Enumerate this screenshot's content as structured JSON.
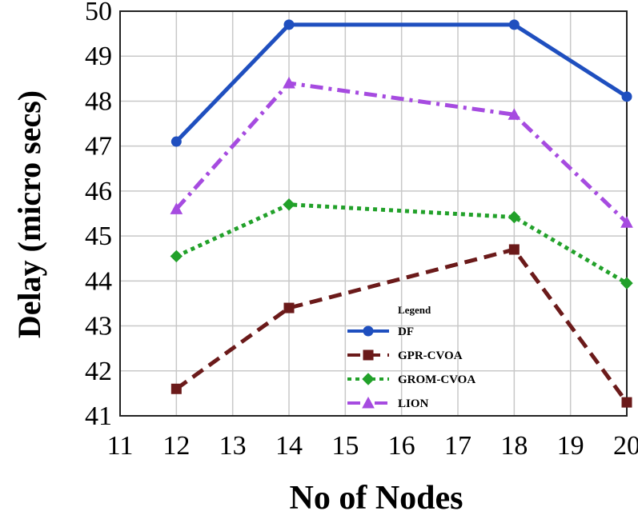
{
  "chart_data": {
    "type": "line",
    "title": "",
    "xlabel": "No of Nodes",
    "ylabel": "Delay (micro secs)",
    "x": [
      12,
      14,
      18,
      20
    ],
    "xlim": [
      11,
      20
    ],
    "ylim": [
      41,
      50
    ],
    "xticks": [
      "11",
      "12",
      "13",
      "14",
      "15",
      "16",
      "17",
      "18",
      "19",
      "20"
    ],
    "yticks": [
      "41",
      "42",
      "43",
      "44",
      "45",
      "46",
      "47",
      "48",
      "49",
      "50"
    ],
    "grid": true,
    "legend": {
      "title": "Legend",
      "placement": "bottom-center"
    },
    "series": [
      {
        "name": "DF",
        "values": [
          47.1,
          49.7,
          49.7,
          48.1
        ],
        "color": "#1f4fbf",
        "marker": "circle",
        "dash": "solid"
      },
      {
        "name": "GPR-CVOA",
        "values": [
          41.6,
          43.4,
          44.7,
          41.3
        ],
        "color": "#6b1a1a",
        "marker": "square",
        "dash": "dashed"
      },
      {
        "name": "GROM-CVOA",
        "values": [
          44.55,
          45.7,
          45.42,
          43.95
        ],
        "color": "#22a12a",
        "marker": "diamond",
        "dash": "dotted"
      },
      {
        "name": "LION",
        "values": [
          45.6,
          48.4,
          47.7,
          45.3
        ],
        "color": "#a64be0",
        "marker": "triangle",
        "dash": "dashdot"
      }
    ]
  }
}
